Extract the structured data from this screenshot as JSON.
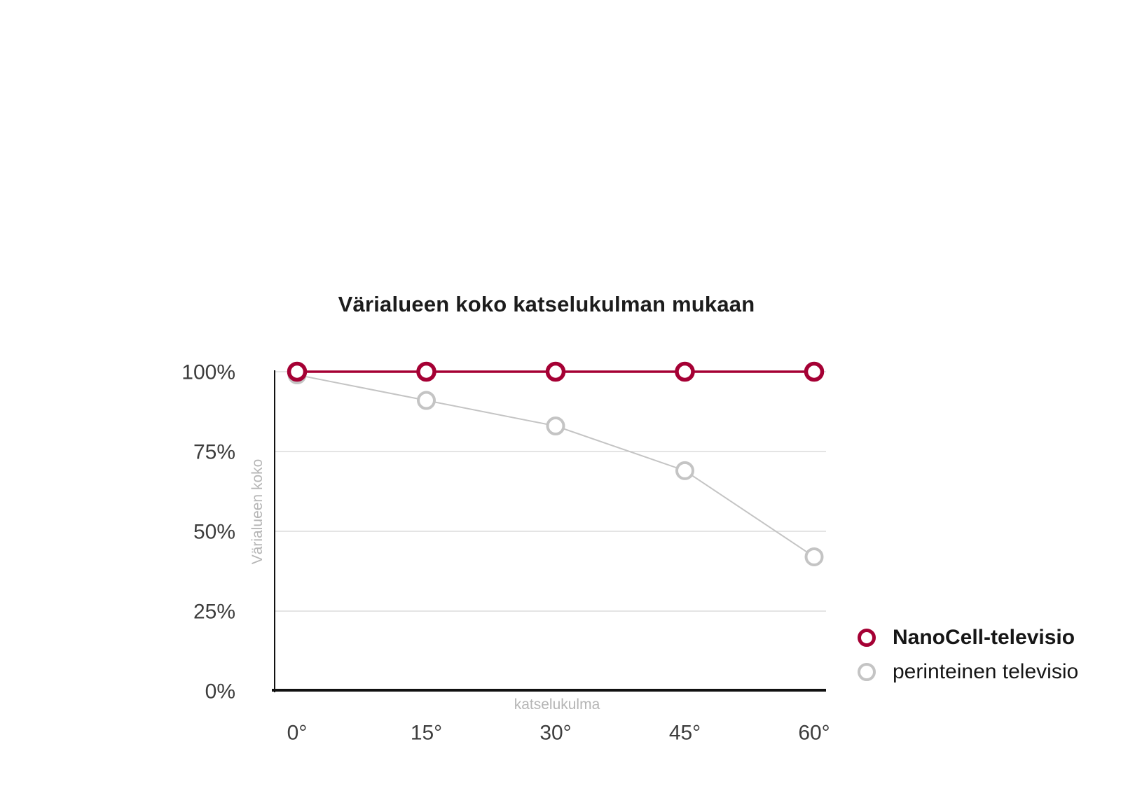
{
  "chart_data": {
    "type": "line",
    "title": "Värialueen koko katselukulman mukaan",
    "xlabel": "katselukulma",
    "ylabel": "Värialueen koko",
    "categories": [
      "0°",
      "15°",
      "30°",
      "45°",
      "60°"
    ],
    "x_degrees": [
      0,
      15,
      30,
      45,
      60
    ],
    "ylim": [
      0,
      100
    ],
    "y_ticks": [
      0,
      25,
      50,
      75,
      100
    ],
    "y_tick_labels": [
      "0%",
      "25%",
      "50%",
      "75%",
      "100%"
    ],
    "grid": true,
    "legend_position": "right-bottom",
    "series": [
      {
        "name": "NanoCell-televisio",
        "color": "#a50034",
        "marker": "open-circle",
        "emphasis": "bold",
        "values": [
          100,
          100,
          100,
          100,
          100
        ]
      },
      {
        "name": "perinteinen televisio",
        "color": "#c4c4c4",
        "marker": "open-circle",
        "emphasis": "regular",
        "values": [
          99,
          91,
          83,
          69,
          42
        ]
      }
    ]
  },
  "colors": {
    "brand_red": "#a50034",
    "series_gray": "#c4c4c4",
    "gridline": "#dcdcdc",
    "axis": "#111111",
    "tick_label": "#3d3d3d",
    "axis_title": "#b5b5b5",
    "title_text": "#1c1c1c",
    "background": "#ffffff"
  }
}
